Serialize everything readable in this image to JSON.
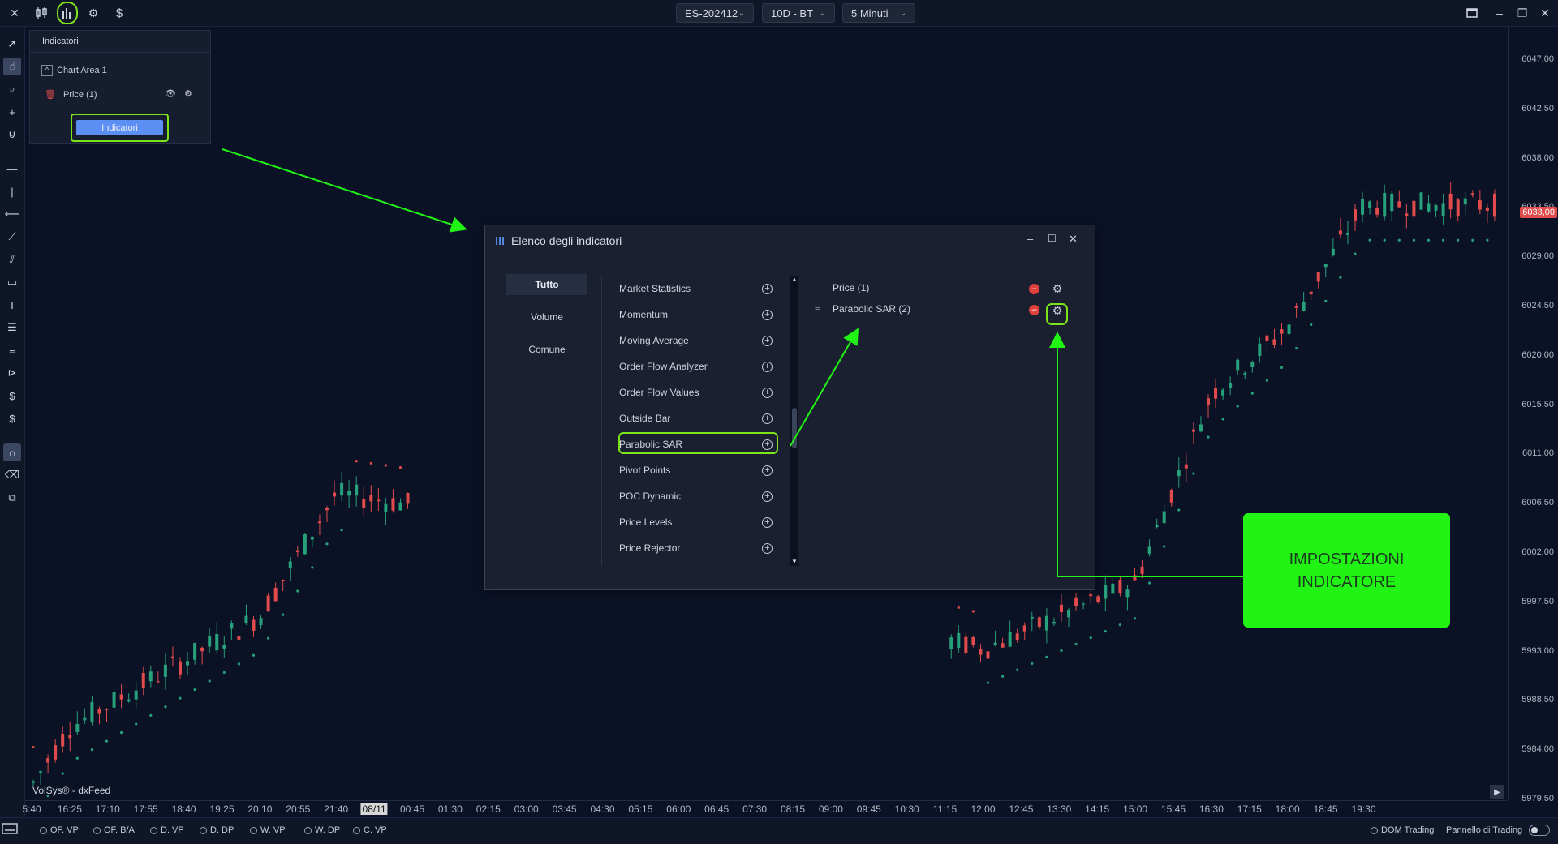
{
  "topbar": {
    "symbol": "ES-202412",
    "range": "10D - BT",
    "timeframe": "5 Minuti",
    "icons": [
      "close-icon",
      "candle-style-icon",
      "indicators-icon",
      "settings-icon",
      "dollar-icon"
    ],
    "dollar_glyph": "$"
  },
  "indicators_panel": {
    "title": "Indicatori",
    "chart_area": "Chart Area 1",
    "price_item": "Price (1)",
    "button_label": "Indicatori"
  },
  "dialog": {
    "title": "Elenco degli indicatori",
    "categories": [
      "Tutto",
      "Volume",
      "Comune"
    ],
    "selected_category": "Tutto",
    "available": [
      "Market Statistics",
      "Momentum",
      "Moving Average",
      "Order Flow Analyzer",
      "Order Flow Values",
      "Outside Bar",
      "Parabolic SAR",
      "Pivot Points",
      "POC Dynamic",
      "Price Levels",
      "Price Rejector"
    ],
    "highlighted": "Parabolic SAR",
    "active": [
      "Price (1)",
      "Parabolic SAR (2)"
    ]
  },
  "callout": {
    "line1": "IMPOSTAZIONI",
    "line2": "INDICATORE"
  },
  "price_axis": {
    "ticks": [
      "6047,00",
      "6042,50",
      "6038,00",
      "6033,50",
      "6029,00",
      "6024,50",
      "6020,00",
      "6015,50",
      "6011,00",
      "6006,50",
      "6002,00",
      "5997,50",
      "5993,00",
      "5988,50",
      "5984,00",
      "5979,50"
    ],
    "last_price": "6033,00"
  },
  "time_axis": {
    "ticks": [
      "5:40",
      "16:25",
      "17:10",
      "17:55",
      "18:40",
      "19:25",
      "20:10",
      "20:55",
      "21:40",
      "08/11",
      "00:45",
      "01:30",
      "02:15",
      "03:00",
      "03:45",
      "04:30",
      "05:15",
      "06:00",
      "06:45",
      "07:30",
      "08:15",
      "09:00",
      "09:45",
      "10:30",
      "11:15",
      "12:00",
      "12:45",
      "13:30",
      "14:15",
      "15:00",
      "15:45",
      "16:30",
      "17:15",
      "18:00",
      "18:45",
      "19:30"
    ],
    "highlighted": "08/11"
  },
  "feed_label": "VolSys® - dxFeed",
  "bottombar": {
    "studies": [
      "OF. VP",
      "OF. B/A",
      "D. VP",
      "D. DP",
      "W. VP",
      "W. DP",
      "C. VP"
    ],
    "dom_label": "DOM Trading",
    "panel_label": "Pannello di Trading"
  },
  "colors": {
    "bull": "#26a17b",
    "bear": "#e14b4b",
    "highlight": "#7de31a",
    "callout": "#21f415",
    "accent_button": "#5b8ff3"
  },
  "chart_data": {
    "type": "candlestick",
    "symbol": "ES-202412",
    "timeframe": "5 Minuti",
    "ylim": [
      5979.5,
      6049.0
    ],
    "indicators": [
      "Price",
      "Parabolic SAR"
    ],
    "candle_count": 200,
    "note_points": [
      {
        "x": "16:25",
        "close": 5986.0
      },
      {
        "x": "20:10",
        "close": 5996.0
      },
      {
        "x": "21:40",
        "close": 6007.0
      },
      {
        "x": "00:45",
        "close": 6006.0
      },
      {
        "x": "12:00",
        "close": 5993.0
      },
      {
        "x": "15:00",
        "close": 5999.0
      },
      {
        "x": "16:30",
        "close": 6016.0
      },
      {
        "x": "18:00",
        "close": 6022.0
      },
      {
        "x": "19:30",
        "close": 6033.0
      }
    ]
  }
}
